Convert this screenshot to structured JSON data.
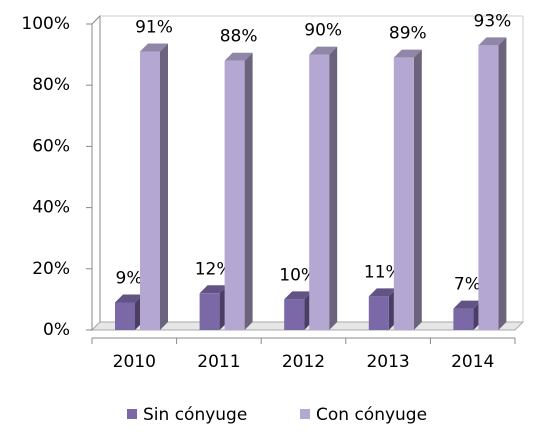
{
  "chart_data": {
    "type": "bar3d",
    "categories": [
      "2010",
      "2011",
      "2012",
      "2013",
      "2014"
    ],
    "series": [
      {
        "name": "Sin cónyuge",
        "color": "#7b68a6",
        "values": [
          9,
          12,
          10,
          11,
          7
        ],
        "value_labels": [
          "9%",
          "12%",
          "10%",
          "11%",
          "7%"
        ]
      },
      {
        "name": "Con cónyuge",
        "color": "#b4a7d1",
        "values": [
          91,
          88,
          90,
          89,
          93
        ],
        "value_labels": [
          "91%",
          "88%",
          "90%",
          "89%",
          "93%"
        ]
      }
    ],
    "ylim": [
      0,
      100
    ],
    "yticks": [
      {
        "value": 0,
        "label": "0%"
      },
      {
        "value": 20,
        "label": "20%"
      },
      {
        "value": 40,
        "label": "40%"
      },
      {
        "value": 60,
        "label": "60%"
      },
      {
        "value": 80,
        "label": "80%"
      },
      {
        "value": 100,
        "label": "100%"
      }
    ],
    "grid": false,
    "legend": "bottom"
  }
}
